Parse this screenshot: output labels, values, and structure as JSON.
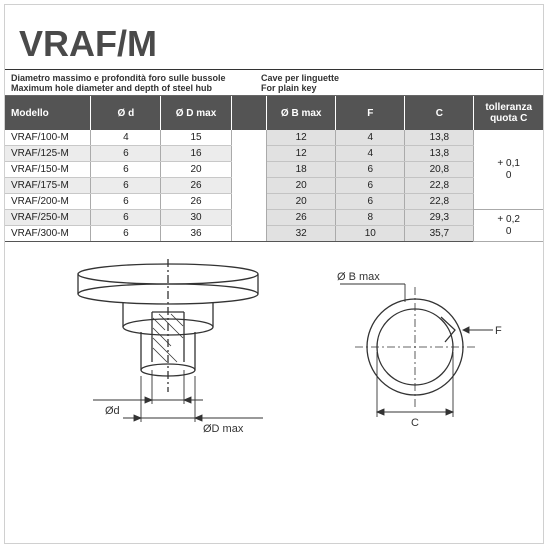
{
  "title": "VRAF/M",
  "header_left_it": "Diametro massimo e profondità foro sulle bussole",
  "header_left_en": "Maximum hole diameter and depth of steel hub",
  "header_right_it": "Cave per linguette",
  "header_right_en": "For plain key",
  "cols": {
    "model": "Modello",
    "d": "Ø d",
    "D": "Ø D max",
    "B": "Ø B max",
    "F": "F",
    "C": "C",
    "tol": "tolleranza quota C"
  },
  "rows": [
    {
      "model": "VRAF/100-M",
      "d": "4",
      "D": "15",
      "B": "12",
      "F": "4",
      "C": "13,8"
    },
    {
      "model": "VRAF/125-M",
      "d": "6",
      "D": "16",
      "B": "12",
      "F": "4",
      "C": "13,8"
    },
    {
      "model": "VRAF/150-M",
      "d": "6",
      "D": "20",
      "B": "18",
      "F": "6",
      "C": "20,8"
    },
    {
      "model": "VRAF/175-M",
      "d": "6",
      "D": "26",
      "B": "20",
      "F": "6",
      "C": "22,8"
    },
    {
      "model": "VRAF/200-M",
      "d": "6",
      "D": "26",
      "B": "20",
      "F": "6",
      "C": "22,8"
    },
    {
      "model": "VRAF/250-M",
      "d": "6",
      "D": "30",
      "B": "26",
      "F": "8",
      "C": "29,3"
    },
    {
      "model": "VRAF/300-M",
      "d": "6",
      "D": "36",
      "B": "32",
      "F": "10",
      "C": "35,7"
    }
  ],
  "tol": [
    {
      "rowspan": 5,
      "upper": "+ 0,1",
      "lower": "0"
    },
    {
      "rowspan": 2,
      "upper": "+ 0,2",
      "lower": "0"
    }
  ],
  "diagram_labels": {
    "d": "Ød",
    "Dmax": "ØD max",
    "Bmax": "Ø B max",
    "F": "F",
    "C": "C"
  },
  "colors": {
    "header_bg": "#545454",
    "key_bg": "#e1e1e1",
    "alt_bg": "#ececec",
    "text": "#333333",
    "title": "#4a4a4a",
    "stroke": "#333333"
  },
  "title_fontsize": 36
}
